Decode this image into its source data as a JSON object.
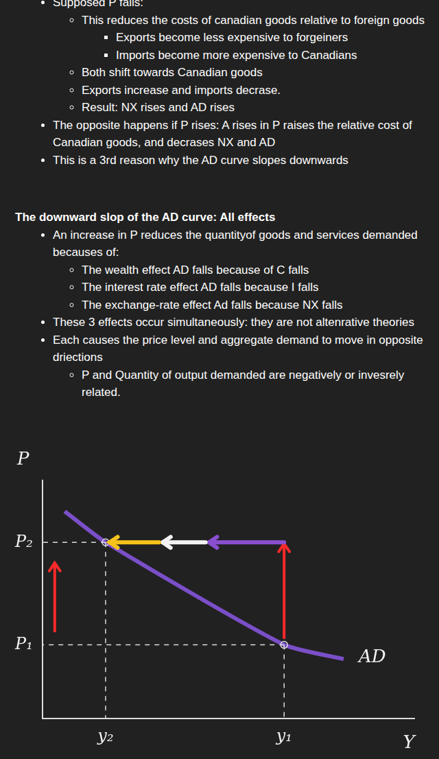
{
  "document": {
    "sections": [
      {
        "items": [
          {
            "text": "Supposed P falls:",
            "children": [
              {
                "text": "This reduces the costs of canadian goods relative to foreign goods",
                "children": [
                  {
                    "text": "Exports become less expensive to forgeiners"
                  },
                  {
                    "text": "Imports become more expensive to Canadians"
                  }
                ]
              },
              {
                "text": "Both shift towards Canadian goods"
              },
              {
                "text": "Exports increase and imports decrase."
              },
              {
                "text": "Result: NX rises and AD rises"
              }
            ]
          },
          {
            "text": "The opposite happens if P rises: A rises in P raises the relative cost of Canadian goods, and decrases NX and AD"
          },
          {
            "text": "This is a 3rd reason why the AD curve slopes downwards"
          }
        ]
      },
      {
        "heading": "The downward slop of the AD curve: All effects",
        "items": [
          {
            "text": "An increase in P reduces the quantityof goods and services demanded becauses of:",
            "children": [
              {
                "text": "The wealth effect AD falls because of C falls"
              },
              {
                "text": "The interest rate effect AD falls because I falls"
              },
              {
                "text": "The exchange-rate effect Ad falls because NX falls"
              }
            ]
          },
          {
            "text": "These 3 effects occur simultaneously: they are not altenrative theories"
          },
          {
            "text": "Each causes the price level and aggregate demand to move in opposite driections",
            "children": [
              {
                "text": "P and Quantity of output demanded are negatively or invesrely related."
              }
            ]
          }
        ]
      }
    ]
  },
  "chart_data": {
    "type": "line",
    "x_label": "Y",
    "y_label": "P",
    "x": [
      0.6,
      1.7,
      6.5,
      8.1
    ],
    "series": [
      {
        "name": "AD",
        "color": "#7a4fc8",
        "values": [
          8.7,
          7.4,
          3.1,
          2.5
        ]
      }
    ],
    "xlim": [
      0,
      10
    ],
    "ylim": [
      0,
      10
    ],
    "xticks": [
      {
        "value": 1.7,
        "label": "y₂"
      },
      {
        "value": 6.5,
        "label": "y₁"
      }
    ],
    "yticks": [
      {
        "value": 3.1,
        "label": "P₁"
      },
      {
        "value": 7.4,
        "label": "P₂"
      }
    ],
    "grid": false,
    "legend": false
  }
}
